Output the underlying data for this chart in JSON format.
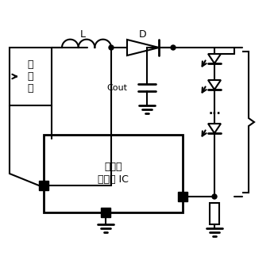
{
  "title": "",
  "background_color": "#ffffff",
  "line_color": "#000000",
  "line_width": 1.5,
  "figsize": [
    3.5,
    3.28
  ],
  "dpi": 100,
  "battery_label": "鋰\n電\n池",
  "inductor_label": "L",
  "diode_label": "D",
  "capacitor_label": "Cout",
  "ic_label": "步進式\n轉換器 IC"
}
